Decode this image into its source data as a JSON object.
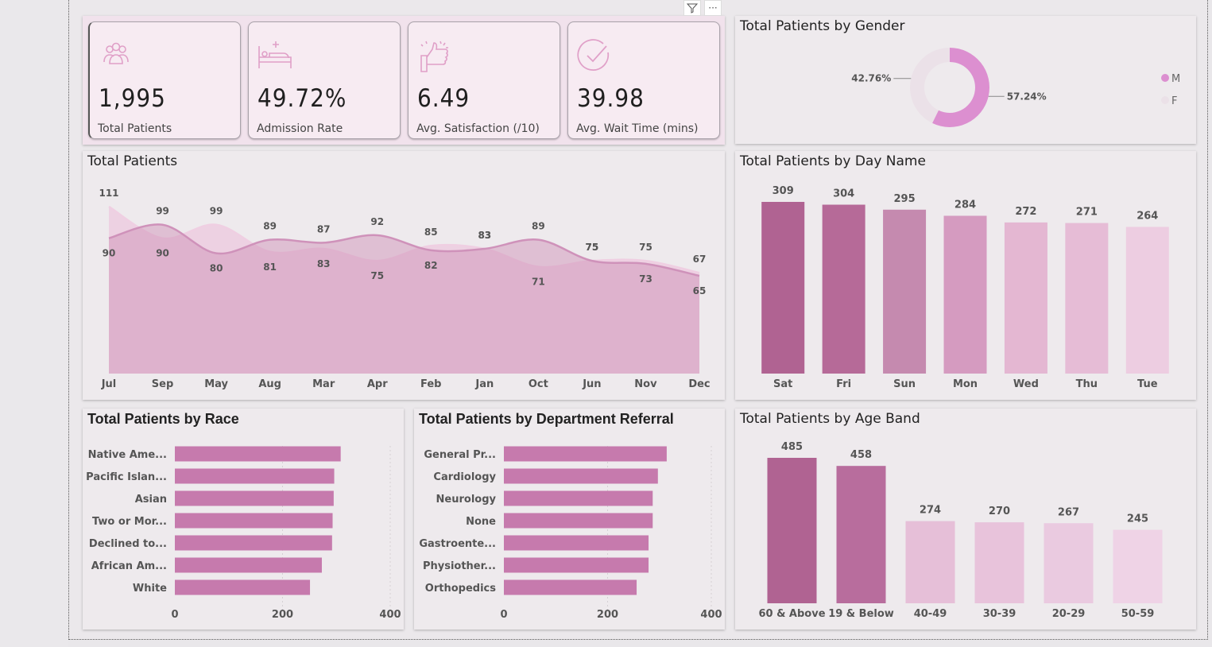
{
  "kpis": [
    {
      "value": "1,995",
      "label": "Total Patients",
      "icon": "people-icon"
    },
    {
      "value": "49.72%",
      "label": "Admission Rate",
      "icon": "hospital-bed-icon"
    },
    {
      "value": "6.49",
      "label": "Avg. Satisfaction (/10)",
      "icon": "thumbs-up-icon"
    },
    {
      "value": "39.98",
      "label": "Avg. Wait Time (mins)",
      "icon": "clock-check-icon"
    }
  ],
  "visual_toolbar": {
    "filter_icon": "filter-icon",
    "more_label": "···"
  },
  "colors": {
    "dark": "#b06392",
    "mid": "#c98ab3",
    "light": "#e6bcd6",
    "lighter": "#efcfe2",
    "card_bg": "#f7ebf2",
    "panel_bg": "#eeeaed"
  },
  "chart_data": [
    {
      "type": "pie",
      "title": "Total Patients by Gender",
      "categories": [
        "M",
        "F"
      ],
      "values": [
        57.24,
        42.76
      ],
      "labels": [
        "57.24%",
        "42.76%"
      ],
      "colors": [
        "#dc8fd0",
        "#ebe1e8"
      ],
      "legend": "right"
    },
    {
      "type": "area",
      "title": "Total Patients",
      "categories": [
        "Jul",
        "Sep",
        "May",
        "Aug",
        "Mar",
        "Apr",
        "Feb",
        "Jan",
        "Oct",
        "Jun",
        "Nov",
        "Dec"
      ],
      "series": [
        {
          "values": [
            111,
            90,
            99,
            81,
            83,
            75,
            85,
            83,
            71,
            75,
            75,
            67
          ]
        },
        {
          "values": [
            90,
            99,
            80,
            89,
            87,
            92,
            82,
            83,
            89,
            75,
            73,
            65
          ]
        }
      ],
      "ylim": [
        0,
        111
      ]
    },
    {
      "type": "bar",
      "title": "Total Patients by Day Name",
      "categories": [
        "Sat",
        "Fri",
        "Sun",
        "Mon",
        "Wed",
        "Thu",
        "Tue"
      ],
      "values": [
        309,
        304,
        295,
        284,
        272,
        271,
        264
      ],
      "colors": [
        "#b06392",
        "#b66a98",
        "#c58aaf",
        "#d59bc0",
        "#e4b7d2",
        "#e6bcd6",
        "#edcde1"
      ]
    },
    {
      "type": "bar",
      "orientation": "horizontal",
      "title": "Total Patients by Race",
      "categories": [
        "Native Ame...",
        "Pacific Islan...",
        "Asian",
        "Two or Mor...",
        "Declined to...",
        "African Am...",
        "White"
      ],
      "values": [
        308,
        296,
        295,
        293,
        292,
        273,
        251
      ],
      "xticks": [
        "0",
        "200",
        "400"
      ],
      "xlim": [
        0,
        400
      ]
    },
    {
      "type": "bar",
      "orientation": "horizontal",
      "title": "Total Patients by Department Referral",
      "categories": [
        "General Pr...",
        "Cardiology",
        "Neurology",
        "None",
        "Gastroente...",
        "Physiother...",
        "Orthopedics"
      ],
      "values": [
        314,
        297,
        287,
        287,
        279,
        279,
        256
      ],
      "xticks": [
        "0",
        "200",
        "400"
      ],
      "xlim": [
        0,
        400
      ]
    },
    {
      "type": "bar",
      "title": "Total Patients by Age Band",
      "categories": [
        "60 & Above",
        "19 & Below",
        "40-49",
        "30-39",
        "20-29",
        "50-59"
      ],
      "values": [
        485,
        458,
        274,
        270,
        267,
        245
      ],
      "colors": [
        "#b06392",
        "#b86d9d",
        "#e6bfd8",
        "#e8c3db",
        "#eacae0",
        "#efd3e6"
      ]
    }
  ]
}
